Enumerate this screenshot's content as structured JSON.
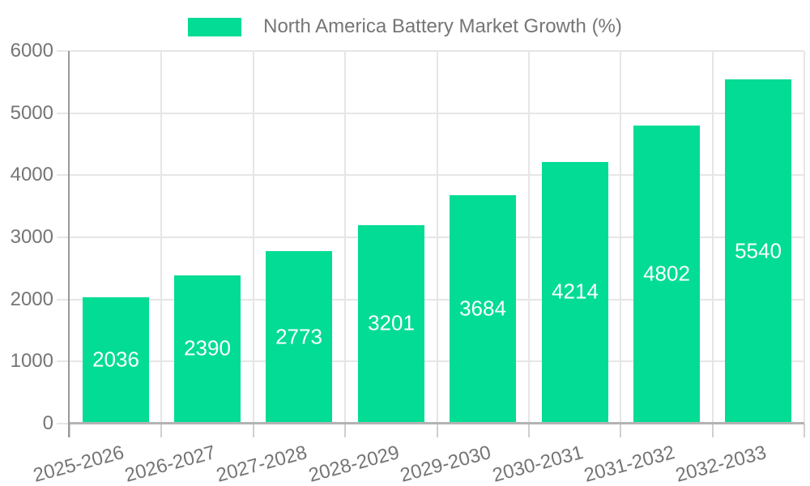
{
  "legend": {
    "label": "North America Battery Market Growth (%)"
  },
  "colors": {
    "bar": "#03dc94",
    "text": "#757575",
    "bar_label": "#ffffff",
    "gridline": "#e6e6e6",
    "y_axis_line": "#999999",
    "x_axis_line": "#b3b3b3",
    "tick": "#cfcfcf",
    "background": "#ffffff"
  },
  "chart_data": {
    "type": "bar",
    "title": "North America Battery Market Growth (%)",
    "categories": [
      "2025-2026",
      "2026-2027",
      "2027-2028",
      "2028-2029",
      "2029-2030",
      "2030-2031",
      "2031-2032",
      "2032-2033"
    ],
    "values": [
      2036,
      2390,
      2773,
      3201,
      3684,
      4214,
      4802,
      5540
    ],
    "xlabel": "",
    "ylabel": "",
    "ylim": [
      0,
      6000
    ],
    "ytick_step": 1000,
    "ytick_labels": [
      "0",
      "1000",
      "2000",
      "3000",
      "4000",
      "5000",
      "6000"
    ],
    "grid": true,
    "legend_position": "top-center",
    "bar_value_labels": "inside-center",
    "x_label_rotation_deg": -15
  }
}
